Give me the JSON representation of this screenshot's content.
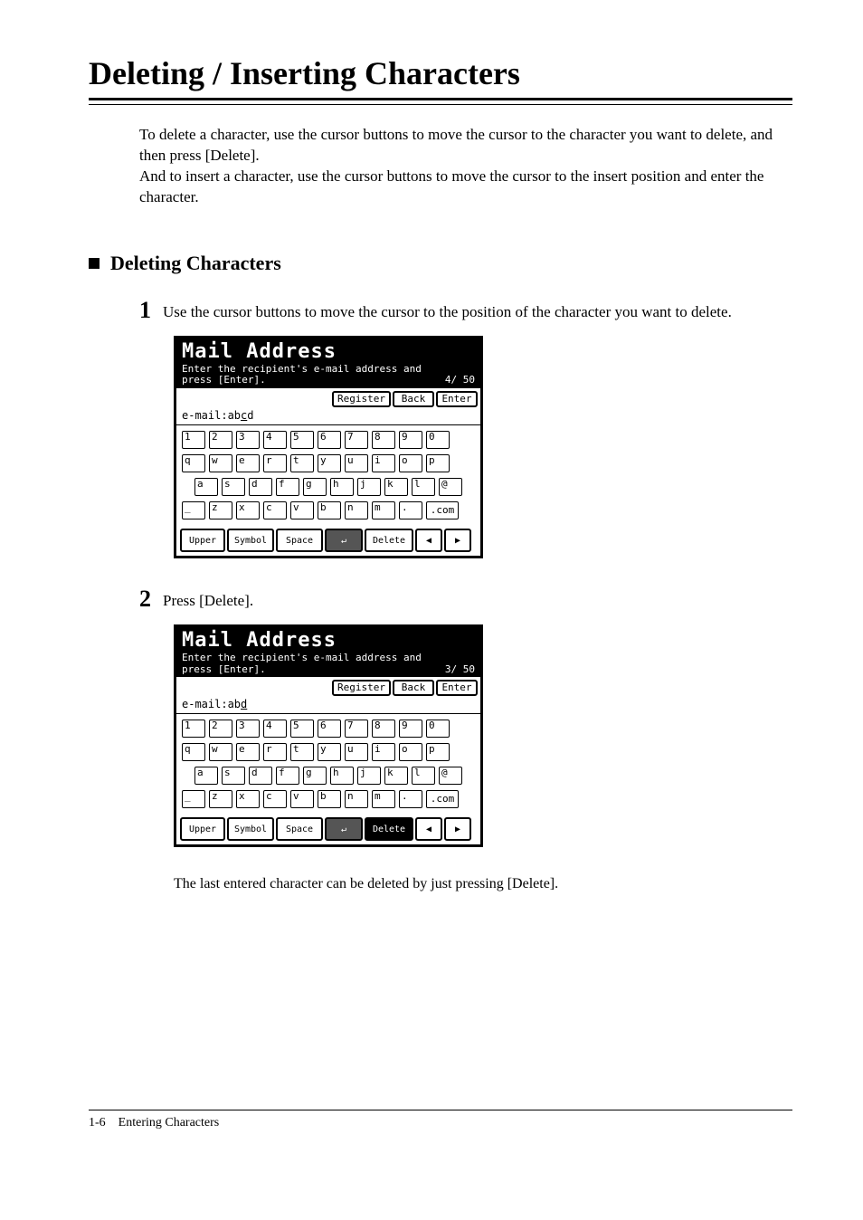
{
  "title": "Deleting / Inserting Characters",
  "intro_p1": "To delete a character, use the cursor buttons to move the cursor to the character you want to delete, and then press [Delete].",
  "intro_p2": "And to insert a character, use the cursor buttons to move the cursor to the insert position and enter the character.",
  "section1": {
    "title": "Deleting Characters",
    "step1_num": "1",
    "step1_text": "Use the cursor buttons to move the cursor to the position of the character you want to delete.",
    "step2_num": "2",
    "step2_text": "Press [Delete].",
    "note": "The last entered character can be deleted by just pressing [Delete]."
  },
  "lcd1": {
    "title": "Mail Address",
    "sub1": "Enter the recipient's e-mail address and",
    "sub2_left": "press [Enter].",
    "sub2_right": "4/ 50",
    "btn_register": "Register",
    "btn_back": "Back",
    "btn_enter": "Enter",
    "label_prefix": "e-mail:ab",
    "label_cursor": "c",
    "label_suffix": "d",
    "rows": {
      "r1": [
        "1",
        "2",
        "3",
        "4",
        "5",
        "6",
        "7",
        "8",
        "9",
        "0"
      ],
      "r2": [
        "q",
        "w",
        "e",
        "r",
        "t",
        "y",
        "u",
        "i",
        "o",
        "p"
      ],
      "r3": [
        "a",
        "s",
        "d",
        "f",
        "g",
        "h",
        "j",
        "k",
        "l",
        "@"
      ],
      "r4": [
        "_",
        "z",
        "x",
        "c",
        "v",
        "b",
        "n",
        "m",
        "."
      ],
      "r4_wide": ".com"
    },
    "bottom": {
      "upper": "Upper",
      "symbol": "Symbol",
      "space": "Space",
      "enter_glyph": "↵",
      "delete": "Delete",
      "left": "◀",
      "right": "▶"
    }
  },
  "lcd2": {
    "title": "Mail Address",
    "sub1": "Enter the recipient's e-mail address and",
    "sub2_left": "press [Enter].",
    "sub2_right": "3/ 50",
    "btn_register": "Register",
    "btn_back": "Back",
    "btn_enter": "Enter",
    "label_prefix": "e-mail:ab",
    "label_cursor": "d",
    "label_suffix": "",
    "rows": {
      "r1": [
        "1",
        "2",
        "3",
        "4",
        "5",
        "6",
        "7",
        "8",
        "9",
        "0"
      ],
      "r2": [
        "q",
        "w",
        "e",
        "r",
        "t",
        "y",
        "u",
        "i",
        "o",
        "p"
      ],
      "r3": [
        "a",
        "s",
        "d",
        "f",
        "g",
        "h",
        "j",
        "k",
        "l",
        "@"
      ],
      "r4": [
        "_",
        "z",
        "x",
        "c",
        "v",
        "b",
        "n",
        "m",
        "."
      ],
      "r4_wide": ".com"
    },
    "bottom": {
      "upper": "Upper",
      "symbol": "Symbol",
      "space": "Space",
      "enter_glyph": "↵",
      "delete": "Delete",
      "left": "◀",
      "right": "▶"
    }
  },
  "footer": {
    "page": "1-6",
    "chapter": "Entering Characters"
  },
  "colors": {
    "text": "#000000",
    "bg": "#ffffff",
    "lcd_header_bg": "#000000",
    "lcd_header_fg": "#ffffff",
    "enter_shade": "#555555"
  }
}
